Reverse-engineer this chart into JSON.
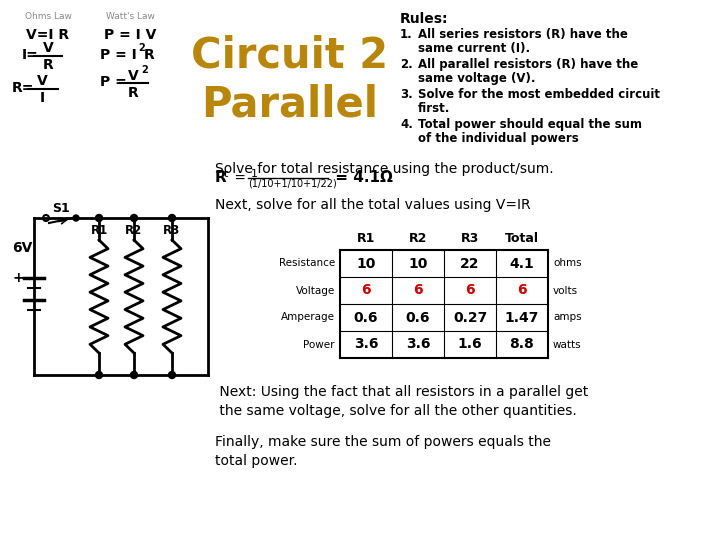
{
  "title": "Circuit 2\nParallel",
  "title_color": "#B8860B",
  "bg_color": "#FFFFFF",
  "ohms_law_title": "Ohms Law",
  "watts_law_title": "Watt's Law",
  "rules_title": "Rules:",
  "rules": [
    [
      "All series resistors (R) have the",
      "same current (I)."
    ],
    [
      "All parallel resistors (R) have the",
      "same voltage (V)."
    ],
    [
      "Solve for the most embedded circuit",
      "first."
    ],
    [
      "Total power should equal the sum",
      "of the individual powers"
    ]
  ],
  "solve_text": "Solve for total resistance using the product/sum.",
  "next_solve": "Next, solve for all the total values using V=IR",
  "table_col_headers": [
    "R1",
    "R2",
    "R3",
    "Total"
  ],
  "table_rows": [
    [
      "Resistance",
      "10",
      "10",
      "22",
      "4.1",
      "ohms"
    ],
    [
      "Voltage",
      "6",
      "6",
      "6",
      "6",
      "volts"
    ],
    [
      "Amperage",
      "0.6",
      "0.6",
      "0.27",
      "1.47",
      "amps"
    ],
    [
      "Power",
      "3.6",
      "3.6",
      "1.6",
      "8.8",
      "watts"
    ]
  ],
  "voltage_row_color": "#CC0000",
  "next_text": " Next: Using the fact that all resistors in a parallel get\n the same voltage, solve for all the other quantities.",
  "finally_text": "Finally, make sure the sum of powers equals the\ntotal power.",
  "voltage_label": "6V",
  "switch_label": "S1",
  "resistor_labels": [
    "R1",
    "R2",
    "R3"
  ]
}
